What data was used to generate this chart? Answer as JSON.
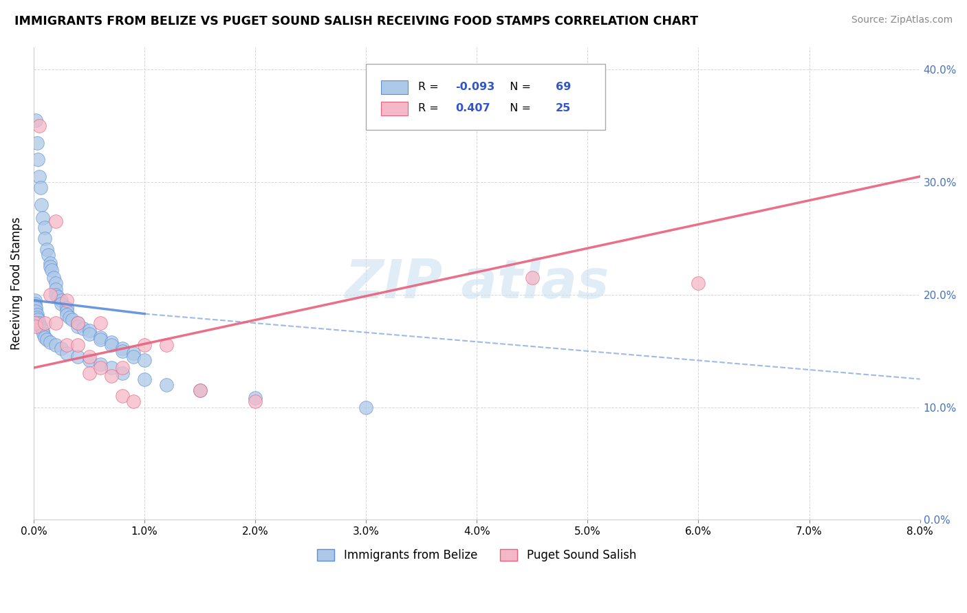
{
  "title": "IMMIGRANTS FROM BELIZE VS PUGET SOUND SALISH RECEIVING FOOD STAMPS CORRELATION CHART",
  "source": "Source: ZipAtlas.com",
  "ylabel": "Receiving Food Stamps",
  "legend_label1": "Immigrants from Belize",
  "legend_label2": "Puget Sound Salish",
  "R1": -0.093,
  "N1": 69,
  "R2": 0.407,
  "N2": 25,
  "color1": "#adc8e8",
  "color2": "#f5b8c8",
  "line1_color": "#5b8dd9",
  "line2_color": "#e8607a",
  "xmin": 0.0,
  "xmax": 0.08,
  "ymin": 0.0,
  "ymax": 0.42,
  "xticks": [
    0.0,
    0.01,
    0.02,
    0.03,
    0.04,
    0.05,
    0.06,
    0.07,
    0.08
  ],
  "yticks": [
    0.0,
    0.1,
    0.2,
    0.3,
    0.4
  ],
  "blue_line_x0": 0.0,
  "blue_line_y0": 0.195,
  "blue_line_x1": 0.08,
  "blue_line_y1": 0.125,
  "pink_line_x0": 0.0,
  "pink_line_y0": 0.135,
  "pink_line_x1": 0.08,
  "pink_line_y1": 0.305,
  "blue_dots_x": [
    0.0002,
    0.0003,
    0.0004,
    0.0005,
    0.0006,
    0.0007,
    0.0008,
    0.001,
    0.001,
    0.0012,
    0.0013,
    0.0015,
    0.0015,
    0.0016,
    0.0018,
    0.002,
    0.002,
    0.002,
    0.0022,
    0.0025,
    0.0025,
    0.003,
    0.003,
    0.003,
    0.0032,
    0.0035,
    0.004,
    0.004,
    0.0045,
    0.005,
    0.005,
    0.006,
    0.006,
    0.007,
    0.007,
    0.008,
    0.008,
    0.009,
    0.009,
    0.01,
    0.0001,
    0.0001,
    0.0001,
    0.0002,
    0.0002,
    0.0003,
    0.0003,
    0.0004,
    0.0005,
    0.0006,
    0.0007,
    0.0008,
    0.0009,
    0.001,
    0.0012,
    0.0015,
    0.002,
    0.0025,
    0.003,
    0.004,
    0.005,
    0.006,
    0.007,
    0.008,
    0.01,
    0.012,
    0.015,
    0.02,
    0.03
  ],
  "blue_dots_y": [
    0.355,
    0.335,
    0.32,
    0.305,
    0.295,
    0.28,
    0.268,
    0.26,
    0.25,
    0.24,
    0.235,
    0.228,
    0.225,
    0.222,
    0.215,
    0.21,
    0.205,
    0.2,
    0.198,
    0.195,
    0.192,
    0.188,
    0.185,
    0.182,
    0.18,
    0.178,
    0.175,
    0.172,
    0.17,
    0.168,
    0.165,
    0.162,
    0.16,
    0.158,
    0.155,
    0.152,
    0.15,
    0.148,
    0.145,
    0.142,
    0.195,
    0.192,
    0.19,
    0.188,
    0.185,
    0.182,
    0.18,
    0.178,
    0.175,
    0.172,
    0.17,
    0.168,
    0.165,
    0.162,
    0.16,
    0.158,
    0.155,
    0.152,
    0.148,
    0.145,
    0.142,
    0.138,
    0.135,
    0.13,
    0.125,
    0.12,
    0.115,
    0.108,
    0.1
  ],
  "pink_dots_x": [
    0.0001,
    0.0002,
    0.0005,
    0.001,
    0.0015,
    0.002,
    0.002,
    0.003,
    0.003,
    0.004,
    0.004,
    0.005,
    0.005,
    0.006,
    0.006,
    0.007,
    0.008,
    0.008,
    0.009,
    0.01,
    0.012,
    0.015,
    0.02,
    0.045,
    0.06
  ],
  "pink_dots_y": [
    0.175,
    0.172,
    0.35,
    0.175,
    0.2,
    0.265,
    0.175,
    0.195,
    0.155,
    0.175,
    0.155,
    0.145,
    0.13,
    0.175,
    0.135,
    0.128,
    0.135,
    0.11,
    0.105,
    0.155,
    0.155,
    0.115,
    0.105,
    0.215,
    0.21
  ]
}
